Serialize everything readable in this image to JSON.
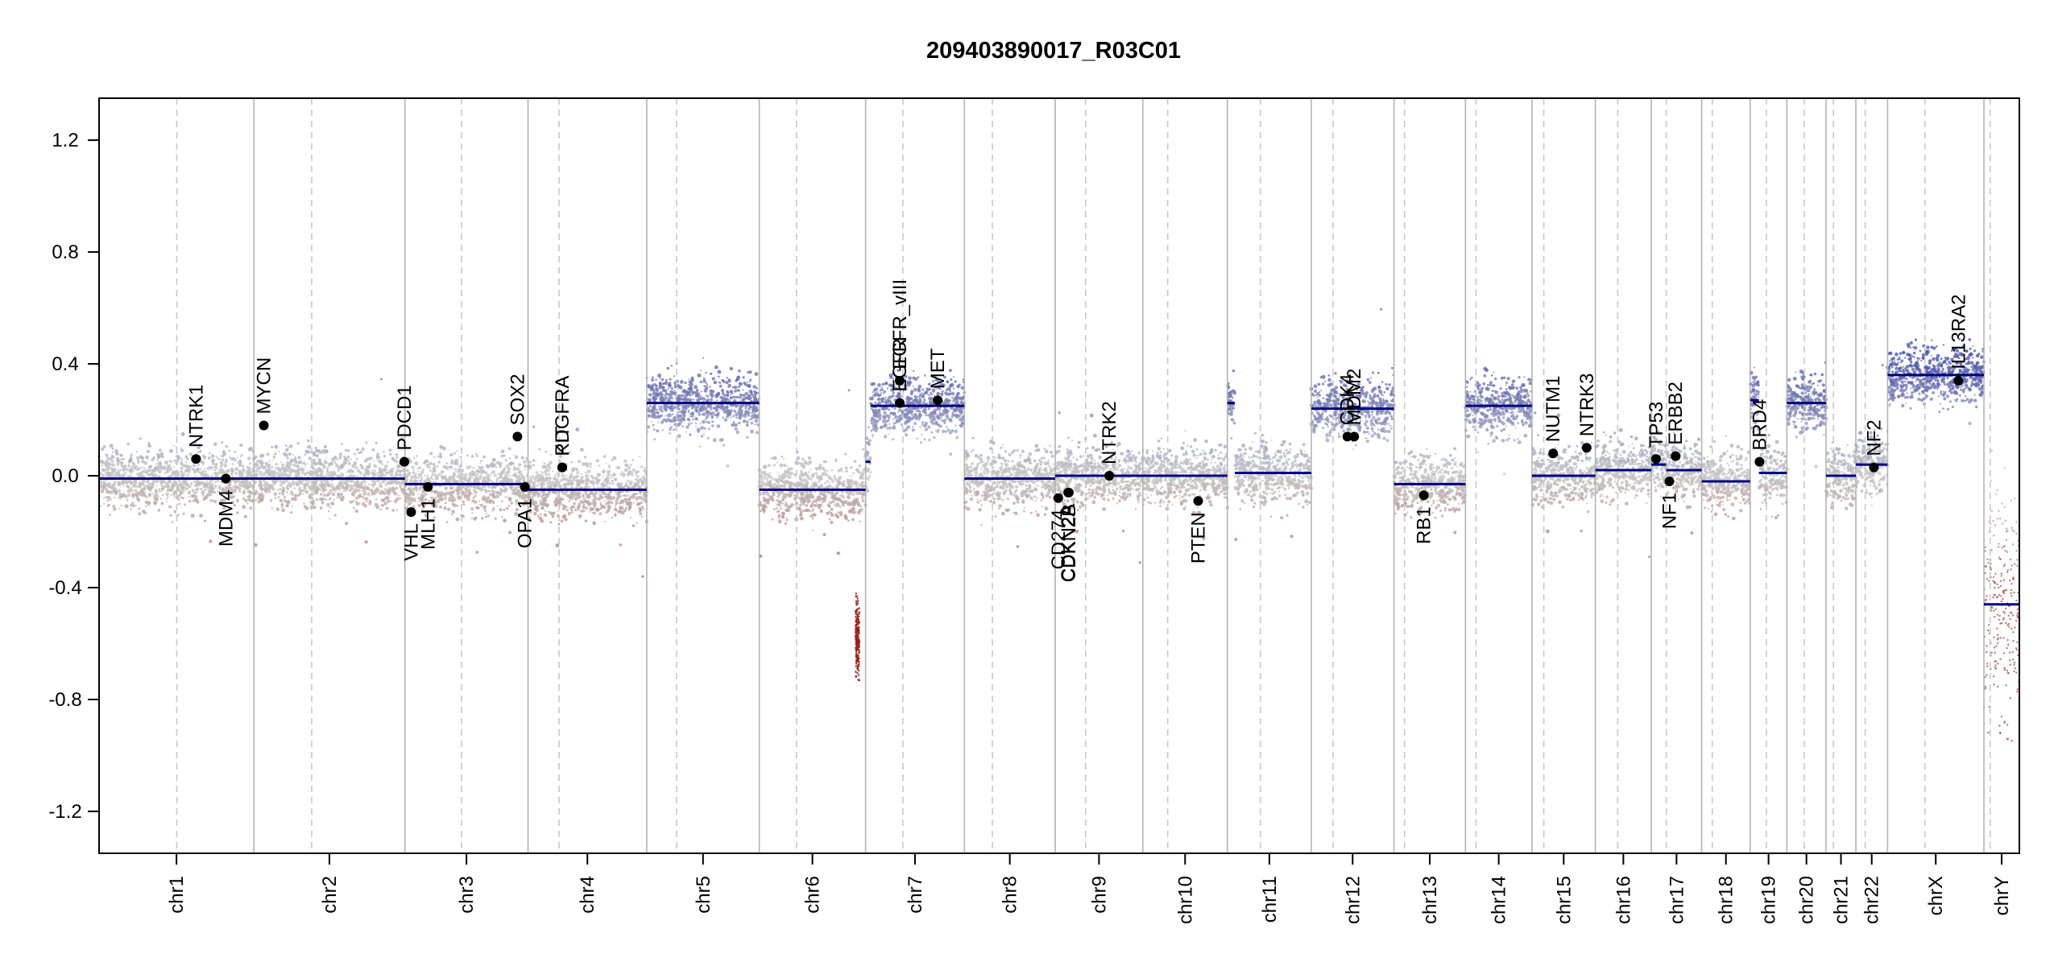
{
  "chart_data": {
    "type": "scatter",
    "title": "209403890017_R03C01",
    "xlabel": "",
    "ylabel": "",
    "ylim": [
      -1.35,
      1.35
    ],
    "y_ticks": [
      1.2,
      0.8,
      0.4,
      0.0,
      -0.4,
      -0.8,
      -1.2
    ],
    "y_tick_labels": [
      "1.2",
      "0.8",
      "0.4",
      "0.0",
      "-0.4",
      "-0.8",
      "-1.2"
    ],
    "grid": false,
    "colors": {
      "gain": "#4a52a8",
      "neutral": "#c4c4c4",
      "loss": "#a05050",
      "segment": "#000080",
      "boundary": "#b4b4b4",
      "centromere": "#c8c8c8",
      "gene_point": "#000000"
    },
    "chromosomes": [
      {
        "name": "chr1",
        "length": 249,
        "centromere": 125
      },
      {
        "name": "chr2",
        "length": 243,
        "centromere": 93
      },
      {
        "name": "chr3",
        "length": 198,
        "centromere": 91
      },
      {
        "name": "chr4",
        "length": 191,
        "centromere": 50
      },
      {
        "name": "chr5",
        "length": 181,
        "centromere": 48
      },
      {
        "name": "chr6",
        "length": 171,
        "centromere": 60
      },
      {
        "name": "chr7",
        "length": 159,
        "centromere": 60
      },
      {
        "name": "chr8",
        "length": 146,
        "centromere": 45
      },
      {
        "name": "chr9",
        "length": 141,
        "centromere": 49
      },
      {
        "name": "chr10",
        "length": 136,
        "centromere": 40
      },
      {
        "name": "chr11",
        "length": 135,
        "centromere": 53
      },
      {
        "name": "chr12",
        "length": 133,
        "centromere": 35
      },
      {
        "name": "chr13",
        "length": 115,
        "centromere": 17
      },
      {
        "name": "chr14",
        "length": 107,
        "centromere": 17
      },
      {
        "name": "chr15",
        "length": 102,
        "centromere": 19
      },
      {
        "name": "chr16",
        "length": 90,
        "centromere": 36
      },
      {
        "name": "chr17",
        "length": 81,
        "centromere": 24
      },
      {
        "name": "chr18",
        "length": 78,
        "centromere": 17
      },
      {
        "name": "chr19",
        "length": 59,
        "centromere": 26
      },
      {
        "name": "chr20",
        "length": 63,
        "centromere": 28
      },
      {
        "name": "chr21",
        "length": 48,
        "centromere": 12
      },
      {
        "name": "chr22",
        "length": 51,
        "centromere": 15
      },
      {
        "name": "chrX",
        "length": 155,
        "centromere": 60
      },
      {
        "name": "chrY",
        "length": 57,
        "centromere": 10
      }
    ],
    "segments": [
      {
        "chr": "chr1",
        "start": 0,
        "end": 249,
        "value": -0.01
      },
      {
        "chr": "chr2",
        "start": 0,
        "end": 243,
        "value": -0.01
      },
      {
        "chr": "chr3",
        "start": 0,
        "end": 198,
        "value": -0.03
      },
      {
        "chr": "chr4",
        "start": 0,
        "end": 191,
        "value": -0.05
      },
      {
        "chr": "chr5",
        "start": 0,
        "end": 181,
        "value": 0.26
      },
      {
        "chr": "chr6",
        "start": 0,
        "end": 171,
        "value": -0.05
      },
      {
        "chr": "chr7",
        "start": 0,
        "end": 8,
        "value": 0.05
      },
      {
        "chr": "chr7",
        "start": 8,
        "end": 159,
        "value": 0.25
      },
      {
        "chr": "chr8",
        "start": 0,
        "end": 146,
        "value": -0.01
      },
      {
        "chr": "chr9",
        "start": 0,
        "end": 141,
        "value": 0.0
      },
      {
        "chr": "chr10",
        "start": 0,
        "end": 136,
        "value": 0.0
      },
      {
        "chr": "chr11",
        "start": 0,
        "end": 12,
        "value": 0.26
      },
      {
        "chr": "chr11",
        "start": 12,
        "end": 135,
        "value": 0.01
      },
      {
        "chr": "chr12",
        "start": 0,
        "end": 133,
        "value": 0.24
      },
      {
        "chr": "chr13",
        "start": 0,
        "end": 115,
        "value": -0.03
      },
      {
        "chr": "chr14",
        "start": 0,
        "end": 107,
        "value": 0.25
      },
      {
        "chr": "chr15",
        "start": 0,
        "end": 102,
        "value": 0.0
      },
      {
        "chr": "chr16",
        "start": 0,
        "end": 90,
        "value": 0.02
      },
      {
        "chr": "chr17",
        "start": 0,
        "end": 24,
        "value": 0.04
      },
      {
        "chr": "chr17",
        "start": 24,
        "end": 81,
        "value": 0.02
      },
      {
        "chr": "chr18",
        "start": 0,
        "end": 78,
        "value": -0.02
      },
      {
        "chr": "chr19",
        "start": 0,
        "end": 14,
        "value": 0.27
      },
      {
        "chr": "chr19",
        "start": 14,
        "end": 59,
        "value": 0.01
      },
      {
        "chr": "chr20",
        "start": 0,
        "end": 63,
        "value": 0.26
      },
      {
        "chr": "chr21",
        "start": 0,
        "end": 48,
        "value": 0.0
      },
      {
        "chr": "chr22",
        "start": 0,
        "end": 51,
        "value": 0.04
      },
      {
        "chr": "chrX",
        "start": 0,
        "end": 155,
        "value": 0.36
      },
      {
        "chr": "chrY",
        "start": 0,
        "end": 57,
        "value": -0.46
      }
    ],
    "genes": [
      {
        "name": "NTRK1",
        "chr": "chr1",
        "pos": 156,
        "value": 0.06,
        "label_side": "above"
      },
      {
        "name": "MDM4",
        "chr": "chr1",
        "pos": 204,
        "value": -0.01,
        "label_side": "below"
      },
      {
        "name": "MYCN",
        "chr": "chr2",
        "pos": 16,
        "value": 0.18,
        "label_side": "above"
      },
      {
        "name": "PDCD1",
        "chr": "chr2",
        "pos": 242,
        "value": 0.05,
        "label_side": "above"
      },
      {
        "name": "VHL",
        "chr": "chr3",
        "pos": 10,
        "value": -0.13,
        "label_side": "below"
      },
      {
        "name": "MLH1",
        "chr": "chr3",
        "pos": 37,
        "value": -0.04,
        "label_side": "below"
      },
      {
        "name": "SOX2",
        "chr": "chr3",
        "pos": 181,
        "value": 0.14,
        "label_side": "above"
      },
      {
        "name": "OPA1",
        "chr": "chr3",
        "pos": 193,
        "value": -0.04,
        "label_side": "below"
      },
      {
        "name": "PDGFRA",
        "chr": "chr4",
        "pos": 55,
        "value": 0.03,
        "label_side": "above"
      },
      {
        "name": "KIT",
        "chr": "chr4",
        "pos": 55,
        "value": 0.03,
        "label_side": "above"
      },
      {
        "name": "EGFR",
        "chr": "chr7",
        "pos": 55,
        "value": 0.26,
        "label_side": "above"
      },
      {
        "name": "EGFR_vIII",
        "chr": "chr7",
        "pos": 55,
        "value": 0.34,
        "label_side": "above"
      },
      {
        "name": "MET",
        "chr": "chr7",
        "pos": 116,
        "value": 0.27,
        "label_side": "above"
      },
      {
        "name": "CD274",
        "chr": "chr9",
        "pos": 5,
        "value": -0.08,
        "label_side": "below"
      },
      {
        "name": "CDKN2A",
        "chr": "chr9",
        "pos": 21,
        "value": -0.06,
        "label_side": "below"
      },
      {
        "name": "CDKN2B",
        "chr": "chr9",
        "pos": 22,
        "value": -0.06,
        "label_side": "below"
      },
      {
        "name": "NTRK2",
        "chr": "chr9",
        "pos": 87,
        "value": 0.0,
        "label_side": "above"
      },
      {
        "name": "PTEN",
        "chr": "chr10",
        "pos": 89,
        "value": -0.09,
        "label_side": "below"
      },
      {
        "name": "CDK4",
        "chr": "chr12",
        "pos": 58,
        "value": 0.14,
        "label_side": "above"
      },
      {
        "name": "MDM2",
        "chr": "chr12",
        "pos": 69,
        "value": 0.14,
        "label_side": "above"
      },
      {
        "name": "RB1",
        "chr": "chr13",
        "pos": 48,
        "value": -0.07,
        "label_side": "below"
      },
      {
        "name": "NUTM1",
        "chr": "chr15",
        "pos": 34,
        "value": 0.08,
        "label_side": "above"
      },
      {
        "name": "NTRK3",
        "chr": "chr15",
        "pos": 88,
        "value": 0.1,
        "label_side": "above"
      },
      {
        "name": "TP53",
        "chr": "chr17",
        "pos": 7.5,
        "value": 0.06,
        "label_side": "above"
      },
      {
        "name": "NF1",
        "chr": "chr17",
        "pos": 29,
        "value": -0.02,
        "label_side": "below"
      },
      {
        "name": "ERBB2",
        "chr": "chr17",
        "pos": 39,
        "value": 0.07,
        "label_side": "above"
      },
      {
        "name": "BRD4",
        "chr": "chr19",
        "pos": 15,
        "value": 0.05,
        "label_side": "above"
      },
      {
        "name": "NF2",
        "chr": "chr22",
        "pos": 29,
        "value": 0.03,
        "label_side": "above"
      },
      {
        "name": "IL13RA2",
        "chrX": true,
        "chr": "chrX",
        "pos": 114,
        "value": 0.34,
        "label_side": "above"
      }
    ]
  }
}
